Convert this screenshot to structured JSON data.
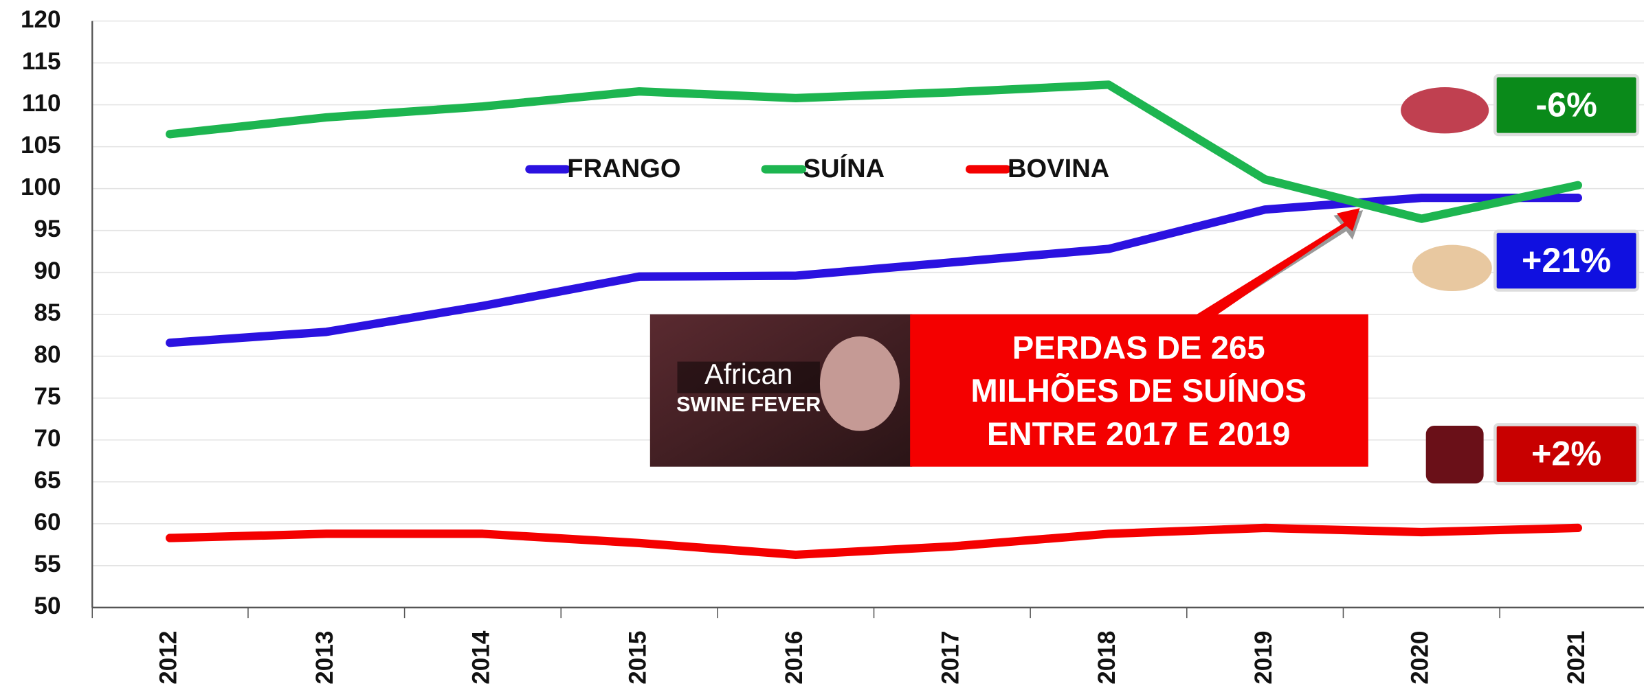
{
  "chart_data": {
    "type": "line",
    "categories": [
      "2012",
      "2013",
      "2014",
      "2015",
      "2016",
      "2017",
      "2018",
      "2019",
      "2020",
      "2021"
    ],
    "series": [
      {
        "name": "FRANGO",
        "color": "#2b12e0",
        "values": [
          81.6,
          82.9,
          86,
          89.5,
          89.6,
          91.2,
          92.8,
          97.5,
          98.9,
          98.9
        ]
      },
      {
        "name": "SUÍNA",
        "color": "#1db550",
        "values": [
          106.5,
          108.5,
          109.8,
          111.6,
          110.8,
          111.5,
          112.4,
          101.1,
          96.4,
          100.4
        ]
      },
      {
        "name": "BOVINA",
        "color": "#f40000",
        "values": [
          58.3,
          58.8,
          58.8,
          57.7,
          56.3,
          57.3,
          58.8,
          59.5,
          59,
          59.5
        ]
      }
    ],
    "ylim": [
      50,
      120
    ],
    "yticks": [
      50,
      55,
      60,
      65,
      70,
      75,
      80,
      85,
      90,
      95,
      100,
      105,
      110,
      115,
      120
    ],
    "grid": true,
    "annotations": {
      "callout": [
        "PERDAS DE 265",
        "MILHÕES DE SUÍNOS",
        "ENTRE 2017 E 2019"
      ],
      "image_text": [
        "African",
        "SWINE FEVER"
      ],
      "badges": [
        {
          "label": "-6%",
          "color": "#0a8a1a"
        },
        {
          "label": "+21%",
          "color": "#1010e0"
        },
        {
          "label": "+2%",
          "color": "#c80000"
        }
      ]
    }
  }
}
